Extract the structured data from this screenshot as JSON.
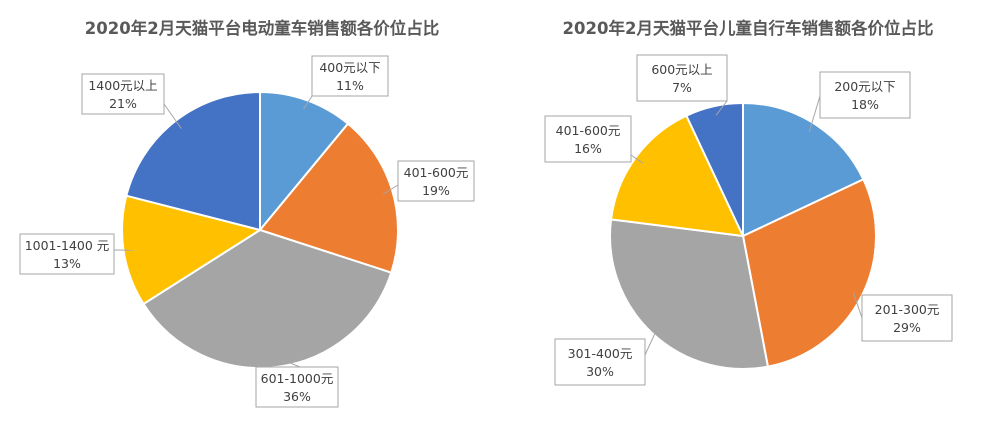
{
  "chart_data": [
    {
      "type": "pie",
      "title": "2020年2月天猫平台电动童车销售额各价位占比",
      "slices": [
        {
          "label": "400元以下",
          "value": 11,
          "value_label": "11%",
          "color": "#5b9bd5"
        },
        {
          "label": "401-600元",
          "value": 19,
          "value_label": "19%",
          "color": "#ed7d31"
        },
        {
          "label": "601-1000元",
          "value": 36,
          "value_label": "36%",
          "color": "#a5a5a5"
        },
        {
          "label": "1001-1400 元",
          "value": 13,
          "value_label": "13%",
          "color": "#ffc000"
        },
        {
          "label": "1400元以上",
          "value": 21,
          "value_label": "21%",
          "color": "#4472c4"
        }
      ]
    },
    {
      "type": "pie",
      "title": "2020年2月天猫平台儿童自行车销售额各价位占比",
      "slices": [
        {
          "label": "200元以下",
          "value": 18,
          "value_label": "18%",
          "color": "#5b9bd5"
        },
        {
          "label": "201-300元",
          "value": 29,
          "value_label": "29%",
          "color": "#ed7d31"
        },
        {
          "label": "301-400元",
          "value": 30,
          "value_label": "30%",
          "color": "#a5a5a5"
        },
        {
          "label": "401-600元",
          "value": 16,
          "value_label": "16%",
          "color": "#ffc000"
        },
        {
          "label": "600元以上",
          "value": 7,
          "value_label": "7%",
          "color": "#4472c4"
        }
      ]
    }
  ]
}
